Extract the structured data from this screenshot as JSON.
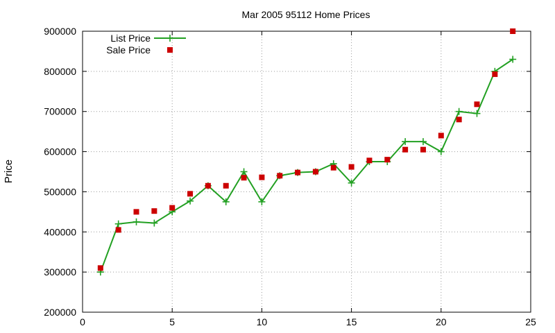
{
  "chart_data": {
    "type": "line",
    "title": "Mar 2005 95112 Home Prices",
    "xlabel": "",
    "ylabel": "Price",
    "xlim": [
      0,
      25
    ],
    "ylim": [
      200000,
      900000
    ],
    "x_ticks": [
      0,
      5,
      10,
      15,
      20,
      25
    ],
    "y_ticks": [
      200000,
      300000,
      400000,
      500000,
      600000,
      700000,
      800000,
      900000
    ],
    "grid": true,
    "legend_position": "top-left",
    "x": [
      1,
      2,
      3,
      4,
      5,
      6,
      7,
      8,
      9,
      10,
      11,
      12,
      13,
      14,
      15,
      16,
      17,
      18,
      19,
      20,
      21,
      22,
      23,
      24
    ],
    "series": [
      {
        "name": "List Price",
        "style": "linespoints",
        "marker": "plus",
        "color": "#22a022",
        "values": [
          300000,
          420000,
          425000,
          422000,
          450000,
          477000,
          515000,
          475000,
          550000,
          475000,
          540000,
          548000,
          550000,
          570000,
          522000,
          575000,
          575000,
          625000,
          625000,
          600000,
          700000,
          695000,
          800000,
          830000
        ]
      },
      {
        "name": "Sale Price",
        "style": "points",
        "marker": "square",
        "color": "#cc0000",
        "values": [
          310000,
          405000,
          450000,
          452000,
          460000,
          495000,
          515000,
          515000,
          535000,
          536000,
          540000,
          548000,
          550000,
          560000,
          562000,
          578000,
          580000,
          605000,
          605000,
          640000,
          680000,
          718000,
          793000,
          900000
        ]
      }
    ]
  }
}
